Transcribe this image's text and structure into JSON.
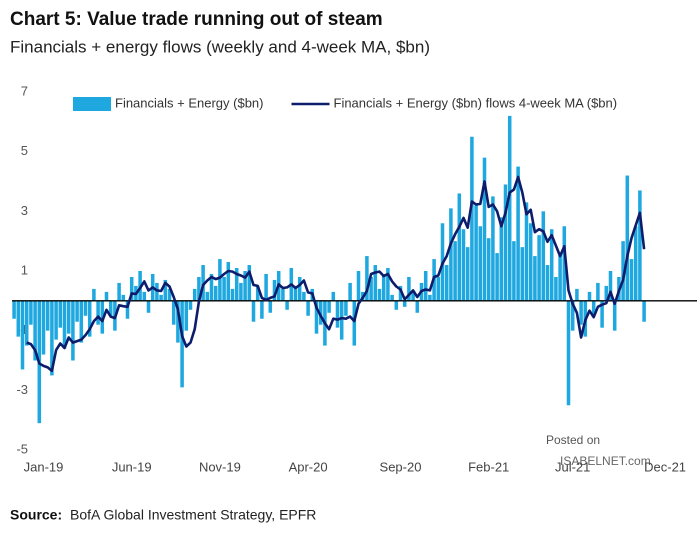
{
  "chart_data": {
    "type": "bar",
    "title": "Chart 5: Value trade running out of steam",
    "subtitle": "Financials + energy flows (weekly and 4-week MA, $bn)",
    "source_label": "Source:",
    "source": "BofA Global Investment Strategy, EPFR",
    "watermark": [
      "Posted on",
      "ISABELNET.com"
    ],
    "ylim": [
      -5,
      7
    ],
    "yticks": [
      -5,
      -3,
      -1,
      1,
      3,
      5,
      7
    ],
    "grid": false,
    "legend": "top",
    "categories": [
      null,
      null,
      null,
      null,
      null,
      null,
      null,
      "Jan-19",
      null,
      null,
      null,
      null,
      null,
      null,
      null,
      null,
      null,
      null,
      null,
      null,
      null,
      null,
      null,
      null,
      null,
      null,
      null,
      null,
      "Jun-19",
      null,
      null,
      null,
      null,
      null,
      null,
      null,
      null,
      null,
      null,
      null,
      null,
      null,
      null,
      null,
      null,
      null,
      null,
      null,
      null,
      "Nov-19",
      null,
      null,
      null,
      null,
      null,
      null,
      null,
      null,
      null,
      null,
      null,
      null,
      null,
      null,
      null,
      null,
      null,
      null,
      null,
      null,
      "Apr-20",
      null,
      null,
      null,
      null,
      null,
      null,
      null,
      null,
      null,
      null,
      null,
      null,
      null,
      null,
      null,
      null,
      null,
      null,
      null,
      null,
      null,
      "Sep-20",
      null,
      null,
      null,
      null,
      null,
      null,
      null,
      null,
      null,
      null,
      null,
      null,
      null,
      null,
      null,
      null,
      null,
      null,
      null,
      null,
      "Feb-21",
      null,
      null,
      null,
      null,
      null,
      null,
      null,
      null,
      null,
      null,
      null,
      null,
      null,
      null,
      null,
      null,
      null,
      null,
      null,
      "Jul-21",
      null,
      null,
      null,
      null,
      null,
      null,
      null,
      null,
      null,
      null,
      null,
      null,
      null,
      null,
      null,
      null,
      null,
      null,
      null,
      null,
      null,
      "Dec-21"
    ],
    "series": [
      {
        "name": "Financials + Energy ($bn)",
        "type": "bar",
        "color": "#1fa8e0",
        "values": [
          -0.6,
          -1.2,
          -2.3,
          -1.5,
          -0.8,
          -2.0,
          -4.1,
          -1.8,
          -1.0,
          -2.5,
          -1.3,
          -0.9,
          -1.6,
          -1.1,
          -2.0,
          -0.7,
          -1.4,
          -0.5,
          -1.2,
          0.4,
          -0.8,
          -1.1,
          0.3,
          -0.5,
          -1.0,
          0.6,
          0.2,
          -0.6,
          0.8,
          0.5,
          1.0,
          0.3,
          -0.4,
          0.9,
          0.6,
          0.2,
          0.7,
          0.4,
          -0.8,
          -1.4,
          -2.9,
          -1.0,
          -0.3,
          0.4,
          0.8,
          1.2,
          0.3,
          0.9,
          0.5,
          1.4,
          0.8,
          1.3,
          0.4,
          1.1,
          0.6,
          1.0,
          1.2,
          -0.7,
          0.5,
          -0.6,
          0.9,
          -0.4,
          0.7,
          1.0,
          0.4,
          -0.3,
          1.1,
          0.5,
          0.8,
          0.3,
          -0.5,
          0.4,
          -1.1,
          -0.8,
          -1.5,
          -0.4,
          0.3,
          -0.9,
          -1.3,
          -0.5,
          0.6,
          -1.5,
          1.0,
          0.3,
          1.5,
          0.8,
          1.2,
          0.4,
          0.9,
          1.1,
          0.2,
          -0.3,
          0.5,
          -0.2,
          0.8,
          0.3,
          -0.4,
          0.6,
          1.0,
          0.2,
          1.4,
          0.8,
          2.6,
          1.2,
          3.1,
          2.0,
          3.6,
          2.4,
          1.8,
          5.5,
          3.2,
          2.5,
          4.8,
          2.1,
          3.5,
          1.6,
          2.8,
          3.9,
          6.2,
          2.0,
          4.5,
          1.8,
          3.3,
          2.6,
          1.5,
          2.2,
          3.0,
          1.2,
          2.4,
          0.8,
          1.6,
          2.5,
          -3.5,
          -1.0,
          0.4,
          -0.8,
          -1.2,
          0.3,
          -0.5,
          0.6,
          -0.9,
          0.5,
          1.0,
          -1.0,
          0.8,
          2.0,
          4.2,
          1.4,
          2.5,
          3.7,
          -0.7,
          null,
          null,
          null,
          null,
          null
        ]
      },
      {
        "name": "Financials + Energy ($bn) flows 4-week MA ($bn)",
        "type": "line",
        "color": "#0d1c6b",
        "values": [
          null,
          null,
          null,
          -1.4,
          -1.45,
          -1.65,
          -2.1,
          -2.18,
          -2.23,
          -2.35,
          -1.65,
          -1.43,
          -1.58,
          -1.23,
          -1.4,
          -1.35,
          -1.3,
          -1.15,
          -0.95,
          -0.68,
          -0.53,
          -0.68,
          -0.3,
          -0.53,
          -0.58,
          -0.15,
          -0.18,
          -0.2,
          0.25,
          0.23,
          0.43,
          0.65,
          0.35,
          0.45,
          0.35,
          0.33,
          0.6,
          0.48,
          0.13,
          -0.28,
          -1.18,
          -1.53,
          -1.4,
          -0.95,
          -0.03,
          0.53,
          0.68,
          0.8,
          0.73,
          0.78,
          0.9,
          1.0,
          0.98,
          0.9,
          0.85,
          0.78,
          0.98,
          0.53,
          0.5,
          0.1,
          0.03,
          0.1,
          0.15,
          0.55,
          0.43,
          0.45,
          0.55,
          0.43,
          0.53,
          0.68,
          0.28,
          0.25,
          -0.23,
          -0.5,
          -0.75,
          -0.95,
          -0.6,
          -0.63,
          -0.58,
          -0.6,
          -0.53,
          -0.68,
          -0.1,
          0.1,
          0.33,
          0.9,
          0.95,
          0.98,
          0.83,
          0.9,
          0.65,
          0.48,
          0.38,
          0.05,
          0.2,
          0.35,
          0.13,
          0.33,
          0.38,
          0.35,
          0.8,
          0.85,
          1.25,
          1.5,
          1.93,
          2.23,
          2.48,
          2.78,
          2.45,
          3.33,
          3.23,
          3.25,
          4.0,
          3.15,
          3.23,
          3.0,
          2.5,
          2.95,
          3.63,
          3.73,
          4.15,
          3.63,
          2.9,
          3.05,
          2.3,
          2.4,
          2.33,
          1.98,
          2.2,
          1.85,
          1.5,
          1.83,
          0.35,
          -0.1,
          -0.4,
          -1.23,
          -0.65,
          -0.33,
          -0.55,
          -0.2,
          -0.13,
          -0.08,
          0.3,
          -0.1,
          0.33,
          0.7,
          1.5,
          2.1,
          2.53,
          2.95,
          1.73,
          null,
          null,
          null,
          null,
          null
        ]
      }
    ]
  }
}
